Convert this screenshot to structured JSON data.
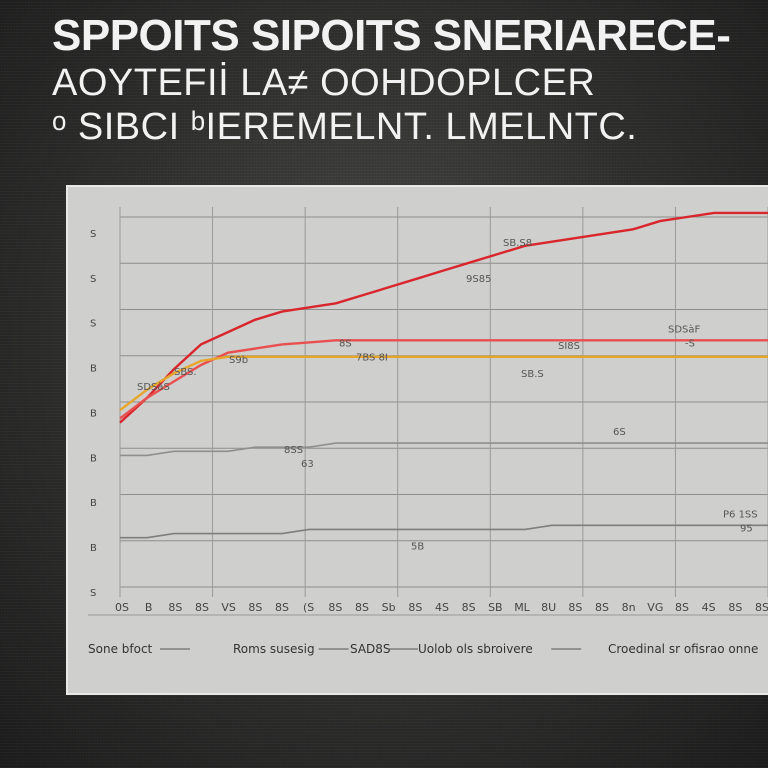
{
  "title_lines": [
    "SPPOITS SIPOITS SNERIARECE-",
    "AOYTEFIİ LA≠  OOHDOPLCER",
    "ᵒ SIBCI  ᵇIEREMELNT. LMELNTC."
  ],
  "chart_data": {
    "type": "line",
    "title": "",
    "xlabel": "",
    "ylabel": "",
    "x": [
      0,
      1,
      2,
      3,
      4,
      5,
      6,
      7,
      8,
      9,
      10,
      11,
      12,
      13,
      14,
      15,
      16,
      17,
      18,
      19,
      20,
      21,
      22,
      23,
      24
    ],
    "x_ticks": [
      "0S",
      "B",
      "8S",
      "8S",
      "VS",
      "8S",
      "8S",
      "(S",
      "8S",
      "8S",
      "Sb",
      "8S",
      "4S",
      "8S",
      "SB",
      "ML",
      "8U",
      "8S",
      "8S",
      "8n",
      "VG",
      "8S",
      "4S",
      "8S",
      "8S"
    ],
    "y_ticks": [
      "S",
      "S",
      "S",
      "B",
      "B",
      "B",
      "B",
      "B",
      "S"
    ],
    "ylim": [
      0,
      9
    ],
    "grid": true,
    "series": [
      {
        "name": "",
        "color": "#d9262c",
        "values": [
          4.0,
          4.6,
          5.3,
          5.9,
          6.2,
          6.5,
          6.7,
          6.8,
          6.9,
          7.1,
          7.3,
          7.5,
          7.7,
          7.9,
          8.1,
          8.3,
          8.4,
          8.5,
          8.6,
          8.7,
          8.9,
          9.0,
          9.1,
          9.1,
          9.1
        ]
      },
      {
        "name": "",
        "color": "#e8504f",
        "values": [
          4.1,
          4.6,
          5.0,
          5.4,
          5.7,
          5.8,
          5.9,
          5.95,
          6.0,
          6.0,
          6.0,
          6.0,
          6.0,
          6.0,
          6.0,
          6.0,
          6.0,
          6.0,
          6.0,
          6.0,
          6.0,
          6.0,
          6.0,
          6.0,
          6.0
        ]
      },
      {
        "name": "",
        "color": "#e7a52a",
        "values": [
          4.3,
          4.8,
          5.2,
          5.5,
          5.6,
          5.6,
          5.6,
          5.6,
          5.6,
          5.6,
          5.6,
          5.6,
          5.6,
          5.6,
          5.6,
          5.6,
          5.6,
          5.6,
          5.6,
          5.6,
          5.6,
          5.6,
          5.6,
          5.6,
          5.6
        ]
      },
      {
        "name": "",
        "color": "#7e7e7e",
        "values": [
          1.2,
          1.2,
          1.3,
          1.3,
          1.3,
          1.3,
          1.3,
          1.4,
          1.4,
          1.4,
          1.4,
          1.4,
          1.4,
          1.4,
          1.4,
          1.4,
          1.5,
          1.5,
          1.5,
          1.5,
          1.5,
          1.5,
          1.5,
          1.5,
          1.5
        ]
      },
      {
        "name": "",
        "color": "#8f8f8f",
        "values": [
          3.2,
          3.2,
          3.3,
          3.3,
          3.3,
          3.4,
          3.4,
          3.4,
          3.5,
          3.5,
          3.5,
          3.5,
          3.5,
          3.5,
          3.5,
          3.5,
          3.5,
          3.5,
          3.5,
          3.5,
          3.5,
          3.5,
          3.5,
          3.5,
          3.5
        ]
      }
    ],
    "annotations": [
      "SDSàS",
      "8S",
      "SB.S",
      "P6 1SS",
      "8SS",
      "9S85",
      "SDSàF",
      "S9b",
      "5B",
      "6S",
      "SBS.",
      "7BS 8I",
      "SI8S",
      "95",
      "63",
      "SB.S8",
      "-S"
    ],
    "legend_position": "bottom",
    "legend": [
      "Sone bfoct",
      "Roms susesig",
      "SAD8S",
      "Uolob ols sbroivere",
      "Croedinal sr ofisrao onne"
    ]
  }
}
